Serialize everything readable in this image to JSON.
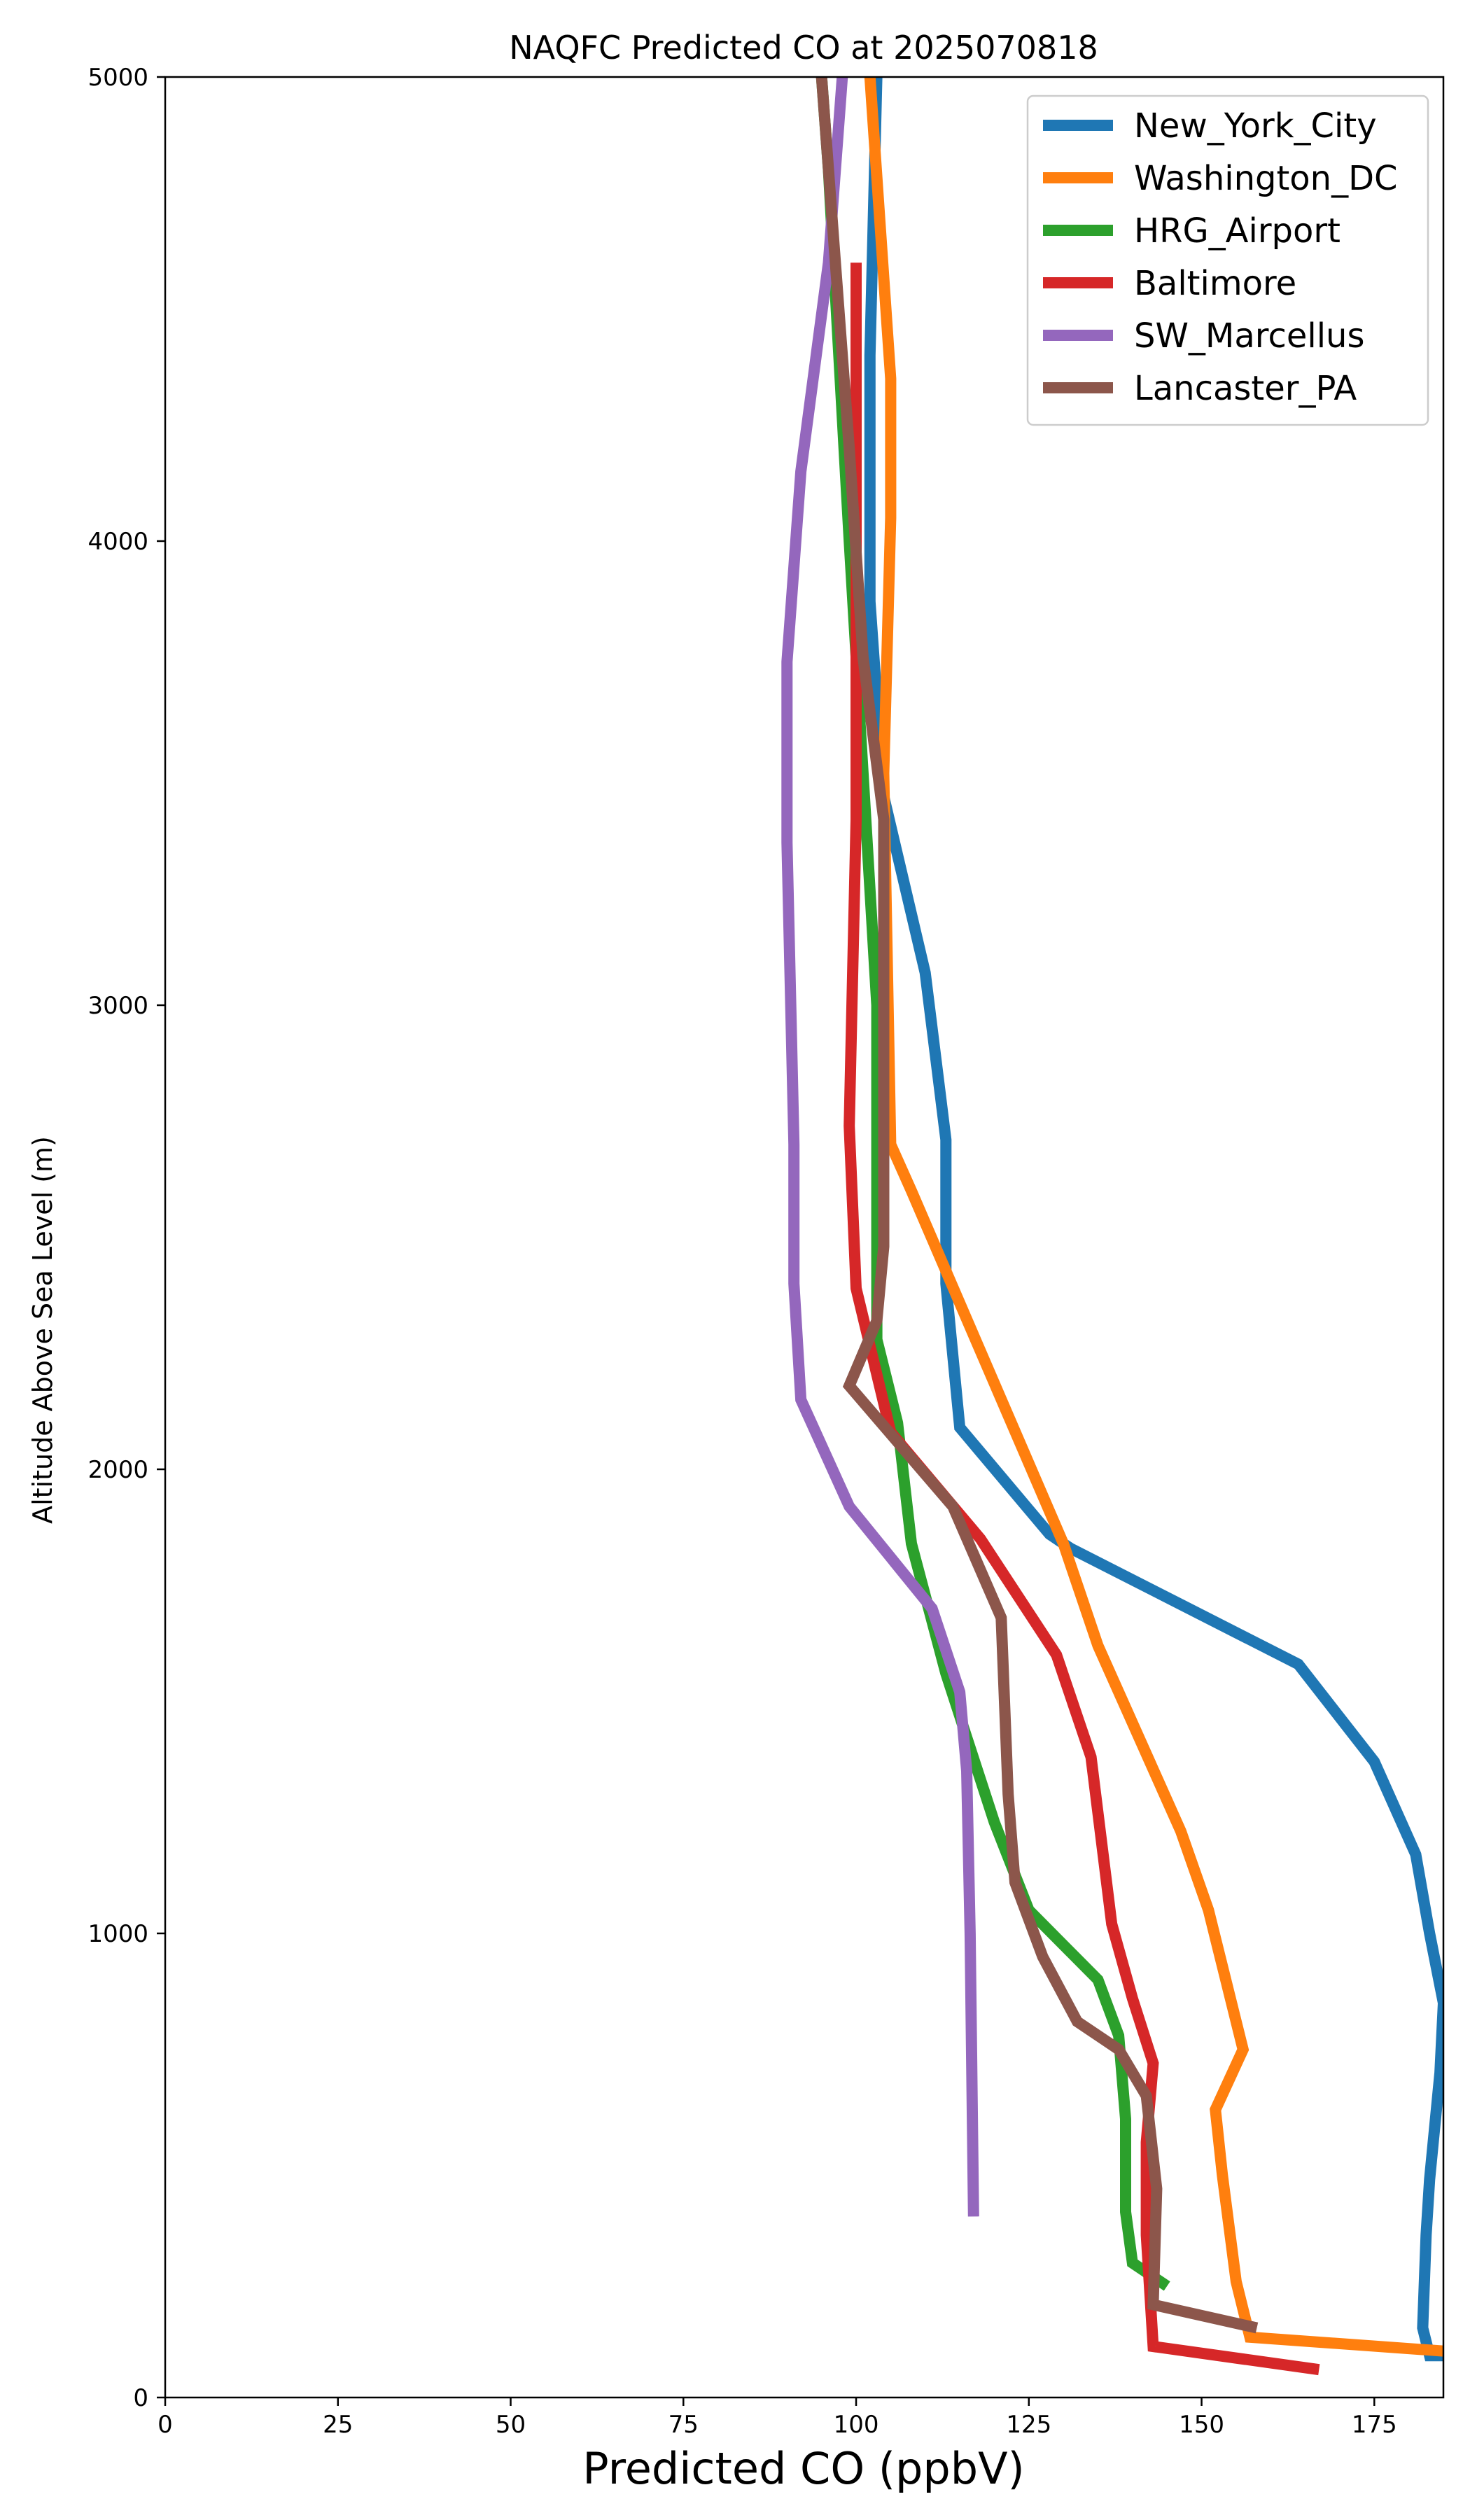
{
  "chart_data": {
    "type": "line",
    "title": "NAQFC Predicted CO at 2025070818",
    "xlabel": "Predicted CO (ppbV)",
    "ylabel": "Altitude Above Sea Level (m)",
    "xlim": [
      0,
      185
    ],
    "ylim": [
      0,
      5000
    ],
    "xticks": [
      0,
      25,
      50,
      75,
      100,
      125,
      150,
      175
    ],
    "yticks": [
      0,
      1000,
      2000,
      3000,
      4000,
      5000
    ],
    "grid": false,
    "legend_position": "top-right",
    "series": [
      {
        "name": "New_York_City",
        "color": "#1f77b4",
        "points": [
          [
            185,
            90
          ],
          [
            183,
            90
          ],
          [
            182,
            150
          ],
          [
            182.5,
            350
          ],
          [
            183,
            470
          ],
          [
            184.5,
            700
          ],
          [
            185,
            850
          ],
          [
            183,
            1000
          ],
          [
            181,
            1170
          ],
          [
            175,
            1370
          ],
          [
            164,
            1580
          ],
          [
            131,
            1830
          ],
          [
            128,
            1860
          ],
          [
            115,
            2090
          ],
          [
            113,
            2400
          ],
          [
            113,
            2710
          ],
          [
            110,
            3070
          ],
          [
            104,
            3450
          ],
          [
            102,
            3870
          ],
          [
            102,
            4400
          ],
          [
            103,
            5000
          ]
        ]
      },
      {
        "name": "Washington_DC",
        "color": "#ff7f0e",
        "points": [
          [
            185,
            100
          ],
          [
            157,
            130
          ],
          [
            155,
            250
          ],
          [
            153,
            480
          ],
          [
            152,
            620
          ],
          [
            156,
            750
          ],
          [
            151,
            1050
          ],
          [
            147,
            1220
          ],
          [
            135,
            1620
          ],
          [
            130,
            1840
          ],
          [
            108,
            2600
          ],
          [
            105,
            2700
          ],
          [
            104,
            3500
          ],
          [
            105,
            4050
          ],
          [
            105,
            4350
          ],
          [
            102,
            5000
          ]
        ]
      },
      {
        "name": "HRG_Airport",
        "color": "#2ca02c",
        "points": [
          [
            145,
            240
          ],
          [
            140,
            290
          ],
          [
            139,
            400
          ],
          [
            139,
            600
          ],
          [
            138,
            780
          ],
          [
            135,
            900
          ],
          [
            125,
            1050
          ],
          [
            120,
            1240
          ],
          [
            113,
            1560
          ],
          [
            108,
            1840
          ],
          [
            106,
            2100
          ],
          [
            103,
            2280
          ],
          [
            103,
            3000
          ],
          [
            101,
            3500
          ],
          [
            99,
            4000
          ],
          [
            96,
            4800
          ],
          [
            95,
            5000
          ]
        ]
      },
      {
        "name": "Baltimore",
        "color": "#d62728",
        "points": [
          [
            167,
            60
          ],
          [
            143,
            110
          ],
          [
            142,
            350
          ],
          [
            142,
            550
          ],
          [
            143,
            720
          ],
          [
            140,
            860
          ],
          [
            137,
            1020
          ],
          [
            134,
            1380
          ],
          [
            129,
            1600
          ],
          [
            118,
            1850
          ],
          [
            105,
            2080
          ],
          [
            100,
            2390
          ],
          [
            99,
            2740
          ],
          [
            100,
            3400
          ],
          [
            100,
            4600
          ]
        ]
      },
      {
        "name": "SW_Marcellus",
        "color": "#9467bd",
        "points": [
          [
            117,
            390
          ],
          [
            116.5,
            1000
          ],
          [
            116,
            1350
          ],
          [
            115,
            1520
          ],
          [
            111,
            1700
          ],
          [
            99,
            1920
          ],
          [
            92,
            2150
          ],
          [
            91,
            2400
          ],
          [
            91,
            2700
          ],
          [
            90,
            3350
          ],
          [
            90,
            3740
          ],
          [
            92,
            4150
          ],
          [
            96,
            4600
          ],
          [
            98,
            5000
          ]
        ]
      },
      {
        "name": "Lancaster_PA",
        "color": "#8c564b",
        "points": [
          [
            158,
            150
          ],
          [
            143,
            200
          ],
          [
            143.5,
            450
          ],
          [
            142,
            650
          ],
          [
            138,
            750
          ],
          [
            132,
            810
          ],
          [
            127,
            950
          ],
          [
            123,
            1110
          ],
          [
            122,
            1300
          ],
          [
            121,
            1680
          ],
          [
            114,
            1920
          ],
          [
            99,
            2180
          ],
          [
            103,
            2320
          ],
          [
            104,
            2480
          ],
          [
            104,
            3400
          ],
          [
            101,
            3750
          ],
          [
            99,
            4200
          ],
          [
            97,
            4600
          ],
          [
            95,
            5000
          ]
        ]
      }
    ]
  }
}
